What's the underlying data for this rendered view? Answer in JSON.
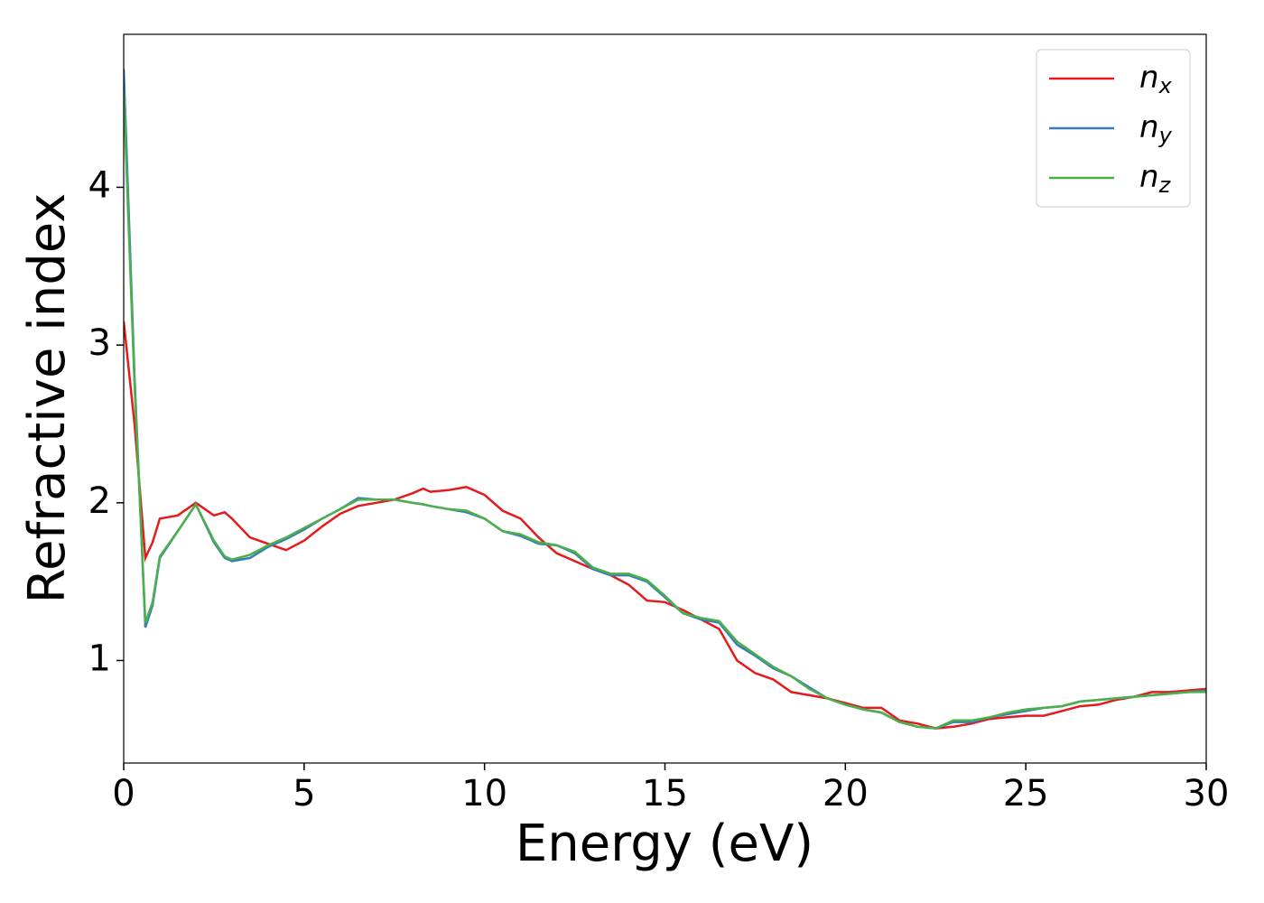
{
  "chart_data": {
    "type": "line",
    "x_label": "Energy (eV)",
    "y_label": "Refractive index",
    "x": [
      0,
      0.3,
      0.6,
      0.8,
      1,
      1.5,
      2,
      2.5,
      2.8,
      3,
      3.5,
      4,
      4.5,
      5,
      5.5,
      6,
      6.5,
      7,
      7.5,
      8,
      8.3,
      8.5,
      9,
      9.5,
      10,
      10.5,
      11,
      11.5,
      12,
      12.5,
      13,
      13.5,
      14,
      14.5,
      15,
      15.5,
      16,
      16.5,
      17,
      17.5,
      18,
      18.5,
      19,
      19.5,
      20,
      20.5,
      21,
      21.5,
      22,
      22.5,
      23,
      23.5,
      24,
      24.5,
      25,
      25.5,
      26,
      26.5,
      27,
      27.5,
      28,
      28.5,
      29,
      29.5,
      30
    ],
    "series": [
      {
        "name": "nx",
        "color": "#e41a1c",
        "values": [
          3.15,
          2.5,
          1.65,
          1.75,
          1.9,
          1.92,
          2.0,
          1.92,
          1.94,
          1.9,
          1.78,
          1.74,
          1.7,
          1.76,
          1.85,
          1.93,
          1.98,
          2.0,
          2.02,
          2.06,
          2.09,
          2.07,
          2.08,
          2.1,
          2.05,
          1.95,
          1.9,
          1.78,
          1.68,
          1.63,
          1.58,
          1.54,
          1.48,
          1.38,
          1.37,
          1.32,
          1.26,
          1.2,
          1.0,
          0.92,
          0.88,
          0.8,
          0.78,
          0.76,
          0.73,
          0.7,
          0.7,
          0.62,
          0.6,
          0.57,
          0.58,
          0.6,
          0.63,
          0.64,
          0.65,
          0.65,
          0.68,
          0.71,
          0.72,
          0.75,
          0.77,
          0.8,
          0.8,
          0.81,
          0.82
        ]
      },
      {
        "name": "ny",
        "color": "#377eb8",
        "values": [
          4.75,
          2.8,
          1.21,
          1.35,
          1.65,
          1.82,
          1.99,
          1.75,
          1.65,
          1.63,
          1.65,
          1.72,
          1.77,
          1.83,
          1.9,
          1.96,
          2.03,
          2.02,
          2.02,
          2.0,
          1.99,
          1.98,
          1.96,
          1.94,
          1.9,
          1.82,
          1.79,
          1.74,
          1.73,
          1.68,
          1.58,
          1.54,
          1.54,
          1.5,
          1.4,
          1.3,
          1.26,
          1.24,
          1.1,
          1.03,
          0.95,
          0.9,
          0.83,
          0.76,
          0.72,
          0.69,
          0.67,
          0.61,
          0.58,
          0.57,
          0.61,
          0.61,
          0.64,
          0.66,
          0.68,
          0.7,
          0.71,
          0.74,
          0.75,
          0.76,
          0.77,
          0.78,
          0.79,
          0.8,
          0.81
        ]
      },
      {
        "name": "nz",
        "color": "#4daf4a",
        "values": [
          4.6,
          2.75,
          1.24,
          1.37,
          1.66,
          1.82,
          1.99,
          1.76,
          1.66,
          1.64,
          1.67,
          1.73,
          1.78,
          1.84,
          1.9,
          1.96,
          2.02,
          2.02,
          2.02,
          2.0,
          1.99,
          1.98,
          1.96,
          1.95,
          1.9,
          1.82,
          1.8,
          1.75,
          1.73,
          1.69,
          1.59,
          1.55,
          1.55,
          1.51,
          1.41,
          1.3,
          1.27,
          1.25,
          1.12,
          1.04,
          0.96,
          0.9,
          0.82,
          0.76,
          0.72,
          0.69,
          0.67,
          0.61,
          0.58,
          0.57,
          0.62,
          0.62,
          0.64,
          0.67,
          0.69,
          0.7,
          0.71,
          0.74,
          0.75,
          0.76,
          0.77,
          0.78,
          0.79,
          0.8,
          0.8
        ]
      }
    ],
    "xlim": [
      0,
      30
    ],
    "xticks": [
      0,
      5,
      10,
      15,
      20,
      25,
      30
    ],
    "ylim": [
      0.35,
      4.97
    ],
    "yticks": [
      1,
      2,
      3,
      4
    ],
    "legend": "upper right",
    "grid": false
  }
}
